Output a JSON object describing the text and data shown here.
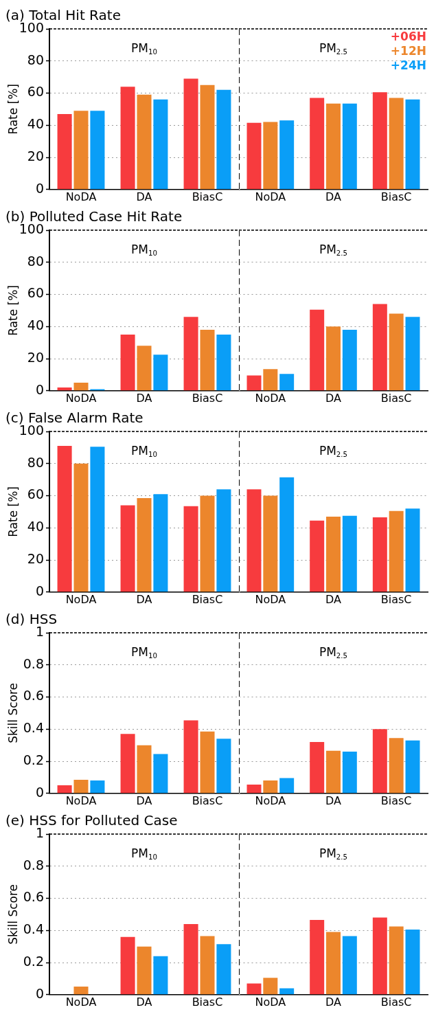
{
  "chart_data": [
    {
      "type": "bar",
      "title": "(a) Total Hit Rate",
      "ylabel": "Rate [%]",
      "categories": [
        "NoDA",
        "DA",
        "BiasC"
      ],
      "ylim": [
        0,
        100
      ],
      "yticks": [
        0,
        20,
        40,
        60,
        80,
        100
      ],
      "grid": "y",
      "annotations": [
        "PM$_{10}$"
      ],
      "series": [
        {
          "color": "#f73b3e",
          "values": [
            47,
            64,
            69
          ]
        },
        {
          "color": "#ec862c",
          "values": [
            49,
            59,
            65
          ]
        },
        {
          "color": "#0a9ef7",
          "values": [
            49,
            56,
            62
          ]
        }
      ]
    },
    {
      "type": "bar",
      "categories": [
        "NoDA",
        "DA",
        "BiasC"
      ],
      "ylim": [
        0,
        100
      ],
      "yticks": [
        0,
        20,
        40,
        60,
        80,
        100
      ],
      "grid": "y",
      "tick_labels": "x",
      "legend": "top right",
      "annotations": [
        "PM$_{2.5}$"
      ],
      "series": [
        {
          "name": "+06H",
          "color": "#f73b3e",
          "values": [
            41.5,
            57,
            60.5
          ]
        },
        {
          "name": "+12H",
          "color": "#ec862c",
          "values": [
            42,
            53.5,
            57
          ]
        },
        {
          "name": "+24H",
          "color": "#0a9ef7",
          "values": [
            43,
            53.5,
            56
          ]
        }
      ]
    },
    {
      "type": "bar",
      "title": "(b) Polluted Case Hit Rate",
      "ylabel": "Rate [%]",
      "categories": [
        "NoDA",
        "DA",
        "BiasC"
      ],
      "ylim": [
        0,
        100
      ],
      "yticks": [
        0,
        20,
        40,
        60,
        80,
        100
      ],
      "grid": "y",
      "annotations": [
        "PM$_{10}$"
      ],
      "series": [
        {
          "color": "#f73b3e",
          "values": [
            2,
            35,
            46
          ]
        },
        {
          "color": "#ec862c",
          "values": [
            5,
            28,
            38
          ]
        },
        {
          "color": "#0a9ef7",
          "values": [
            1,
            22.5,
            35
          ]
        }
      ]
    },
    {
      "type": "bar",
      "categories": [
        "NoDA",
        "DA",
        "BiasC"
      ],
      "ylim": [
        0,
        100
      ],
      "yticks": [
        0,
        20,
        40,
        60,
        80,
        100
      ],
      "grid": "y",
      "tick_labels": "x",
      "annotations": [
        "PM$_{2.5}$"
      ],
      "series": [
        {
          "color": "#f73b3e",
          "values": [
            9.5,
            50.5,
            54
          ]
        },
        {
          "color": "#ec862c",
          "values": [
            13.5,
            40,
            48
          ]
        },
        {
          "color": "#0a9ef7",
          "values": [
            10.5,
            38,
            46
          ]
        }
      ]
    },
    {
      "type": "bar",
      "title": "(c) False Alarm Rate",
      "ylabel": "Rate [%]",
      "categories": [
        "NoDA",
        "DA",
        "BiasC"
      ],
      "ylim": [
        0,
        100
      ],
      "yticks": [
        0,
        20,
        40,
        60,
        80,
        100
      ],
      "grid": "y",
      "annotations": [
        "PM$_{10}$"
      ],
      "series": [
        {
          "color": "#f73b3e",
          "values": [
            91,
            54,
            53.5
          ]
        },
        {
          "color": "#ec862c",
          "values": [
            80,
            58.5,
            60
          ]
        },
        {
          "color": "#0a9ef7",
          "values": [
            90.5,
            61,
            64
          ]
        }
      ]
    },
    {
      "type": "bar",
      "categories": [
        "NoDA",
        "DA",
        "BiasC"
      ],
      "ylim": [
        0,
        100
      ],
      "yticks": [
        0,
        20,
        40,
        60,
        80,
        100
      ],
      "grid": "y",
      "tick_labels": "x",
      "annotations": [
        "PM$_{2.5}$"
      ],
      "series": [
        {
          "color": "#f73b3e",
          "values": [
            64,
            44.5,
            46.5
          ]
        },
        {
          "color": "#ec862c",
          "values": [
            60,
            47,
            50.5
          ]
        },
        {
          "color": "#0a9ef7",
          "values": [
            71.5,
            47.5,
            52
          ]
        }
      ]
    },
    {
      "type": "bar",
      "title": "(d) HSS",
      "ylabel": "Skill Score",
      "categories": [
        "NoDA",
        "DA",
        "BiasC"
      ],
      "ylim": [
        0,
        1
      ],
      "yticks": [
        0,
        0.2,
        0.4,
        0.6,
        0.8,
        1
      ],
      "grid": "y",
      "annotations": [
        "PM$_{10}$"
      ],
      "series": [
        {
          "color": "#f73b3e",
          "values": [
            0.05,
            0.37,
            0.455
          ]
        },
        {
          "color": "#ec862c",
          "values": [
            0.085,
            0.3,
            0.385
          ]
        },
        {
          "color": "#0a9ef7",
          "values": [
            0.08,
            0.245,
            0.34
          ]
        }
      ]
    },
    {
      "type": "bar",
      "categories": [
        "NoDA",
        "DA",
        "BiasC"
      ],
      "ylim": [
        0,
        1
      ],
      "yticks": [
        0,
        0.2,
        0.4,
        0.6,
        0.8,
        1
      ],
      "grid": "y",
      "tick_labels": "x",
      "annotations": [
        "PM$_{2.5}$"
      ],
      "series": [
        {
          "color": "#f73b3e",
          "values": [
            0.055,
            0.32,
            0.4
          ]
        },
        {
          "color": "#ec862c",
          "values": [
            0.08,
            0.265,
            0.345
          ]
        },
        {
          "color": "#0a9ef7",
          "values": [
            0.095,
            0.26,
            0.33
          ]
        }
      ]
    },
    {
      "type": "bar",
      "title": "(e) HSS for Polluted Case",
      "ylabel": "Skill Score",
      "categories": [
        "NoDA",
        "DA",
        "BiasC"
      ],
      "ylim": [
        0,
        1
      ],
      "yticks": [
        0,
        0.2,
        0.4,
        0.6,
        0.8,
        1
      ],
      "grid": "y",
      "annotations": [
        "PM$_{10}$"
      ],
      "series": [
        {
          "color": "#f73b3e",
          "values": [
            0,
            0.36,
            0.44
          ]
        },
        {
          "color": "#ec862c",
          "values": [
            0.05,
            0.3,
            0.365
          ]
        },
        {
          "color": "#0a9ef7",
          "values": [
            0,
            0.24,
            0.315
          ]
        }
      ]
    },
    {
      "type": "bar",
      "categories": [
        "NoDA",
        "DA",
        "BiasC"
      ],
      "ylim": [
        0,
        1
      ],
      "yticks": [
        0,
        0.2,
        0.4,
        0.6,
        0.8,
        1
      ],
      "grid": "y",
      "tick_labels": "x",
      "annotations": [
        "PM$_{2.5}$"
      ],
      "series": [
        {
          "color": "#f73b3e",
          "values": [
            0.07,
            0.465,
            0.48
          ]
        },
        {
          "color": "#ec862c",
          "values": [
            0.105,
            0.39,
            0.425
          ]
        },
        {
          "color": "#0a9ef7",
          "values": [
            0.04,
            0.365,
            0.405
          ]
        }
      ]
    }
  ]
}
